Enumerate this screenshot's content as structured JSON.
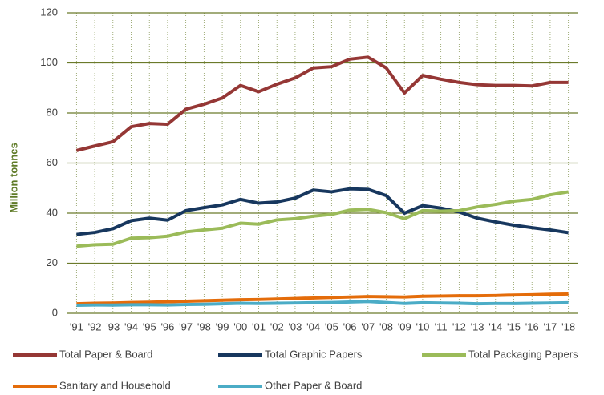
{
  "chart_data": {
    "type": "line",
    "ylabel": "Million tonnes",
    "categories": [
      "'91",
      "'92",
      "'93",
      "'94",
      "'95",
      "'96",
      "'97",
      "'98",
      "'99",
      "'00",
      "'01",
      "'02",
      "'03",
      "'04",
      "'05",
      "'06",
      "'07",
      "'08",
      "'09",
      "'10",
      "'11",
      "'12",
      "'13",
      "'14",
      "'15",
      "'16",
      "'17",
      "'18"
    ],
    "series": [
      {
        "name": "Total Paper & Board",
        "color": "#953735",
        "values": [
          65,
          66.8,
          68.5,
          74.5,
          75.8,
          75.5,
          81.5,
          83.5,
          86,
          91,
          88.5,
          91.5,
          94,
          98,
          98.5,
          101.5,
          102.3,
          98,
          88,
          95,
          93.5,
          92.2,
          91.3,
          91,
          91,
          90.8,
          92.2,
          92.2
        ]
      },
      {
        "name": "Total Graphic Papers",
        "color": "#17375e",
        "values": [
          31.5,
          32.3,
          33.8,
          37,
          38,
          37.2,
          41,
          42.2,
          43.3,
          45.5,
          44,
          44.5,
          46,
          49.2,
          48.5,
          49.7,
          49.5,
          47,
          40,
          43,
          42,
          40.5,
          38,
          36.5,
          35.2,
          34.2,
          33.3,
          32.2
        ]
      },
      {
        "name": "Total Packaging Papers",
        "color": "#9bbb59",
        "values": [
          26.8,
          27.4,
          27.6,
          30,
          30.2,
          30.8,
          32.5,
          33.3,
          34,
          36,
          35.6,
          37.3,
          37.8,
          38.8,
          39.5,
          41.2,
          41.5,
          40.2,
          37.8,
          41,
          40.8,
          41,
          42.5,
          43.5,
          44.8,
          45.5,
          47.3,
          48.5
        ]
      },
      {
        "name": "Sanitary and Household",
        "color": "#e46c0a",
        "values": [
          3.8,
          4.0,
          4.1,
          4.3,
          4.4,
          4.6,
          4.8,
          5.0,
          5.2,
          5.4,
          5.5,
          5.7,
          5.9,
          6.1,
          6.3,
          6.5,
          6.7,
          6.6,
          6.5,
          6.8,
          6.9,
          7.0,
          7.0,
          7.1,
          7.3,
          7.4,
          7.6,
          7.7
        ]
      },
      {
        "name": "Other Paper & Board",
        "color": "#4bacc6",
        "values": [
          3.2,
          3.3,
          3.3,
          3.4,
          3.4,
          3.3,
          3.5,
          3.6,
          3.8,
          4.0,
          3.9,
          4.0,
          4.1,
          4.2,
          4.3,
          4.5,
          4.7,
          4.3,
          3.9,
          4.2,
          4.1,
          4.0,
          3.8,
          3.9,
          3.9,
          4.0,
          4.1,
          4.2
        ]
      }
    ],
    "ylim": [
      0,
      120
    ],
    "yticks": [
      0,
      20,
      40,
      60,
      80,
      100,
      120
    ],
    "grid": true
  }
}
